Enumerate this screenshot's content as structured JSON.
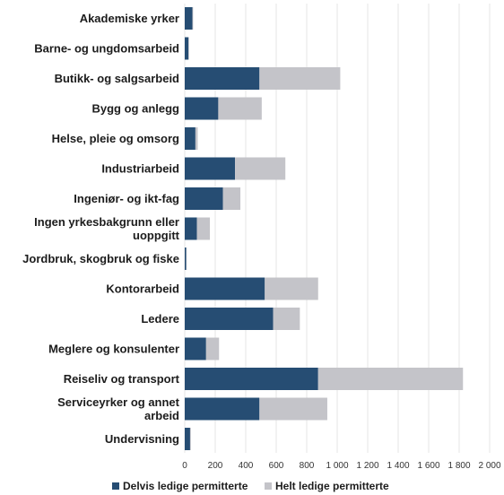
{
  "chart_data": {
    "type": "bar",
    "orientation": "horizontal",
    "stacked": true,
    "title": "",
    "xlabel": "",
    "ylabel": "",
    "categories": [
      "Akademiske yrker",
      "Barne- og ungdomsarbeid",
      "Butikk- og salgsarbeid",
      "Bygg og anlegg",
      "Helse, pleie og omsorg",
      "Industriarbeid",
      "Ingeniør- og ikt-fag",
      "Ingen yrkesbakgrunn eller uoppgitt",
      "Jordbruk, skogbruk og fiske",
      "Kontorarbeid",
      "Ledere",
      "Meglere og konsulenter",
      "Reiseliv og transport",
      "Serviceyrker og annet arbeid",
      "Undervisning"
    ],
    "series": [
      {
        "name": "Delvis ledige permitterte",
        "color": "#264d73",
        "values": [
          50,
          25,
          490,
          220,
          70,
          330,
          250,
          80,
          10,
          525,
          580,
          140,
          875,
          490,
          35
        ]
      },
      {
        "name": "Helt ledige permitterte",
        "color": "#c4c4c9",
        "values": [
          5,
          3,
          530,
          285,
          15,
          330,
          115,
          85,
          2,
          350,
          175,
          85,
          950,
          445,
          5
        ]
      }
    ],
    "xlim": [
      0,
      2000
    ],
    "xticks": [
      0,
      200,
      400,
      600,
      800,
      1000,
      1200,
      1400,
      1600,
      1800,
      2000
    ],
    "xtick_labels": [
      "0",
      "200",
      "400",
      "600",
      "800",
      "1 000",
      "1 200",
      "1 400",
      "1 600",
      "1 800",
      "2 000"
    ],
    "grid": "vertical",
    "legend_position": "bottom"
  }
}
